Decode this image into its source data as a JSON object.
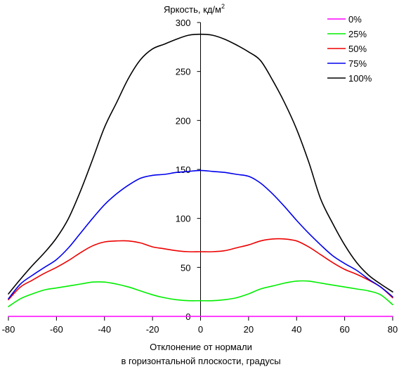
{
  "chart_data": {
    "type": "line",
    "ylabel": "Яркость, кд/м",
    "ylabel_sup": "2",
    "xlabel": [
      "Отклонение от нормали",
      "в горизонтальной плоскости, градусы"
    ],
    "xlim": [
      -80,
      80
    ],
    "ylim": [
      0,
      300
    ],
    "x_ticks": [
      -80,
      -60,
      -40,
      -20,
      0,
      20,
      40,
      60,
      80
    ],
    "y_ticks": [
      0,
      50,
      100,
      150,
      200,
      250,
      300
    ],
    "x_tick_labels": [
      "-80",
      "-60",
      "-40",
      "-20",
      "0",
      "20",
      "40",
      "60",
      "80"
    ],
    "y_tick_labels": [
      "0",
      "50",
      "100",
      "150",
      "200",
      "250",
      "300"
    ],
    "grid": false,
    "legend_position": "top-right",
    "series": [
      {
        "name": "0%",
        "color": "#ff00ff",
        "x": [
          -80,
          -60,
          -40,
          -20,
          0,
          20,
          40,
          60,
          80
        ],
        "y": [
          0,
          0,
          0,
          0,
          0,
          0,
          0,
          0,
          0
        ]
      },
      {
        "name": "25%",
        "color": "#00ee00",
        "x": [
          -80,
          -75,
          -70,
          -65,
          -60,
          -55,
          -50,
          -45,
          -40,
          -35,
          -30,
          -25,
          -20,
          -15,
          -10,
          -5,
          0,
          5,
          10,
          15,
          20,
          25,
          30,
          35,
          40,
          45,
          50,
          55,
          60,
          65,
          70,
          75,
          80
        ],
        "y": [
          10,
          18,
          23,
          27,
          29,
          31,
          33,
          35,
          35,
          33,
          30,
          26,
          22,
          19,
          17,
          16,
          16,
          16,
          17,
          19,
          23,
          28,
          31,
          34,
          36,
          36,
          34,
          32,
          30,
          28,
          26,
          22,
          12
        ]
      },
      {
        "name": "50%",
        "color": "#ee0000",
        "x": [
          -80,
          -75,
          -70,
          -65,
          -60,
          -55,
          -50,
          -45,
          -40,
          -35,
          -30,
          -25,
          -20,
          -15,
          -10,
          -5,
          0,
          5,
          10,
          15,
          20,
          25,
          30,
          35,
          40,
          45,
          50,
          55,
          60,
          65,
          70,
          75,
          80
        ],
        "y": [
          17,
          30,
          37,
          44,
          50,
          57,
          65,
          72,
          76,
          77,
          77,
          75,
          71,
          69,
          67,
          66,
          66,
          66,
          67,
          70,
          73,
          77,
          79,
          79,
          77,
          71,
          63,
          55,
          48,
          43,
          37,
          30,
          19
        ]
      },
      {
        "name": "75%",
        "color": "#0000ee",
        "x": [
          -80,
          -75,
          -70,
          -65,
          -60,
          -55,
          -50,
          -45,
          -40,
          -35,
          -30,
          -25,
          -20,
          -15,
          -10,
          -5,
          0,
          5,
          10,
          15,
          20,
          25,
          30,
          35,
          40,
          45,
          50,
          55,
          60,
          65,
          70,
          75,
          80
        ],
        "y": [
          18,
          33,
          42,
          50,
          58,
          70,
          85,
          100,
          114,
          125,
          134,
          141,
          144,
          145,
          147,
          148,
          149,
          148,
          147,
          145,
          143,
          136,
          125,
          112,
          98,
          85,
          73,
          62,
          54,
          47,
          38,
          30,
          20
        ]
      },
      {
        "name": "100%",
        "color": "#000000",
        "x": [
          -80,
          -75,
          -70,
          -65,
          -60,
          -55,
          -50,
          -45,
          -40,
          -35,
          -30,
          -25,
          -20,
          -15,
          -10,
          -5,
          0,
          5,
          10,
          15,
          20,
          25,
          30,
          35,
          40,
          45,
          50,
          55,
          60,
          65,
          70,
          75,
          80
        ],
        "y": [
          23,
          38,
          52,
          65,
          80,
          100,
          128,
          160,
          193,
          218,
          243,
          262,
          273,
          278,
          283,
          287,
          288,
          287,
          283,
          277,
          270,
          261,
          241,
          218,
          191,
          158,
          120,
          95,
          73,
          55,
          42,
          33,
          25
        ]
      }
    ]
  }
}
